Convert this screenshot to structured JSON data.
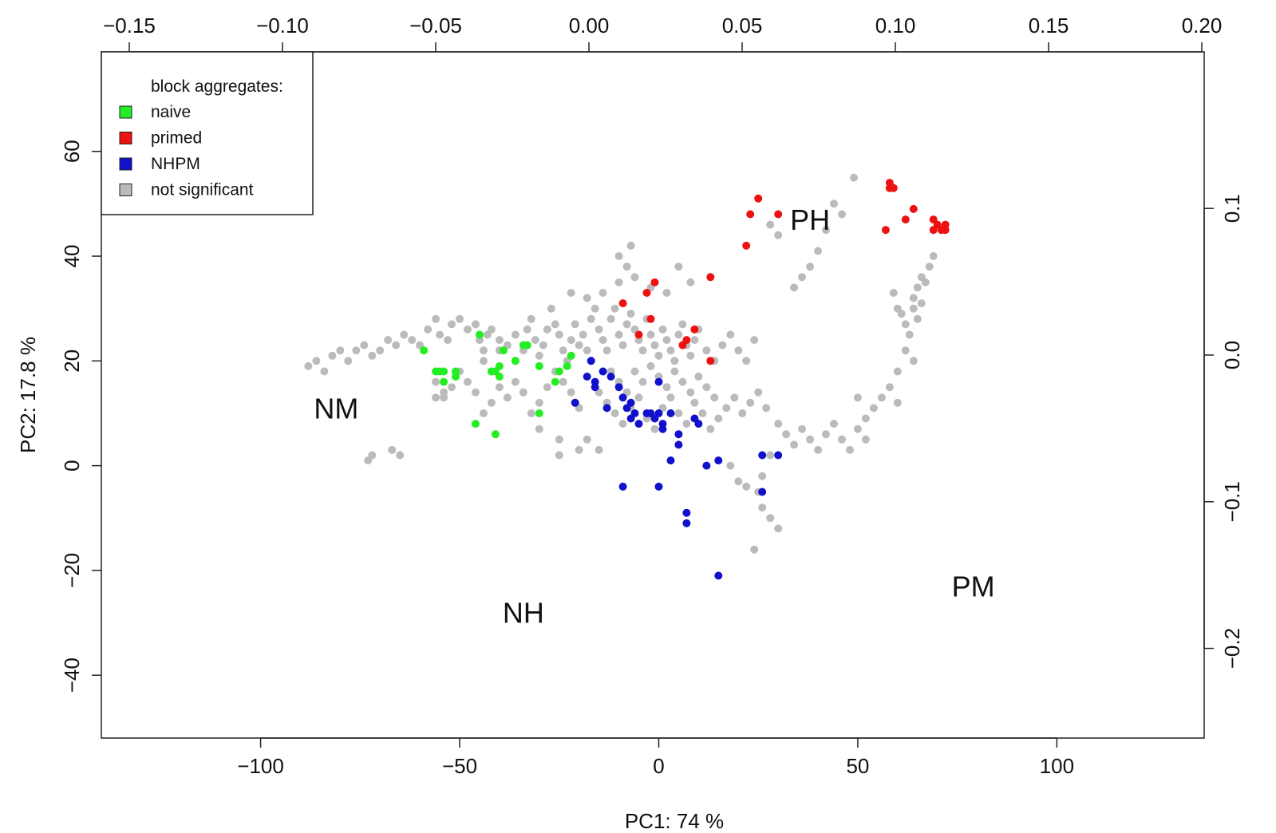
{
  "chart_data": {
    "type": "scatter",
    "title": "",
    "xlabel": "PC1: 74 %",
    "ylabel": "PC2: 17.8 %",
    "xlim": [
      -140,
      137
    ],
    "ylim": [
      -52,
      79
    ],
    "x_ticks": [
      -100,
      -50,
      0,
      50,
      100
    ],
    "y_ticks": [
      -40,
      -20,
      0,
      20,
      40,
      60
    ],
    "x_tick_labels": [
      "−100",
      "−50",
      "0",
      "50",
      "100"
    ],
    "y_tick_labels": [
      "−40",
      "−20",
      "0",
      "20",
      "40",
      "60"
    ],
    "top_axis": {
      "ticks": [
        -0.15,
        -0.1,
        -0.05,
        0.0,
        0.05,
        0.1,
        0.15,
        0.2
      ],
      "labels": [
        "−0.15",
        "−0.10",
        "−0.05",
        "0.00",
        "0.05",
        "0.10",
        "0.15",
        "0.20"
      ]
    },
    "right_axis": {
      "ticks": [
        0.1,
        0.0,
        -0.1,
        -0.2
      ],
      "labels": [
        "0.1",
        "0.0",
        "−0.1",
        "−0.2"
      ]
    },
    "legend": {
      "title": "block aggregates:",
      "placement": "top-left",
      "entries": [
        {
          "label": "naive",
          "color": "#22ee22"
        },
        {
          "label": "primed",
          "color": "#ee1111"
        },
        {
          "label": "NHPM",
          "color": "#1111cc"
        },
        {
          "label": "not significant",
          "color": "#bbbbbb"
        }
      ]
    },
    "region_labels": [
      {
        "text": "NM",
        "x": -81,
        "y": 9
      },
      {
        "text": "PH",
        "x": 38,
        "y": 45
      },
      {
        "text": "NH",
        "x": -34,
        "y": -30
      },
      {
        "text": "PM",
        "x": 79,
        "y": -25
      }
    ],
    "series": [
      {
        "color": "#bbbbbb",
        "points": [
          [
            -88,
            19
          ],
          [
            -86,
            20
          ],
          [
            -84,
            18
          ],
          [
            -82,
            21
          ],
          [
            -80,
            22
          ],
          [
            -78,
            20
          ],
          [
            -76,
            22
          ],
          [
            -74,
            23
          ],
          [
            -72,
            21
          ],
          [
            -70,
            22
          ],
          [
            -68,
            24
          ],
          [
            -66,
            23
          ],
          [
            -64,
            25
          ],
          [
            -62,
            24
          ],
          [
            -60,
            23
          ],
          [
            -58,
            26
          ],
          [
            -56,
            28
          ],
          [
            -55,
            25
          ],
          [
            -53,
            24
          ],
          [
            -52,
            27
          ],
          [
            -50,
            28
          ],
          [
            -48,
            26
          ],
          [
            -46,
            27
          ],
          [
            -45,
            24
          ],
          [
            -44,
            22
          ],
          [
            -43,
            25
          ],
          [
            -42,
            26
          ],
          [
            -40,
            24
          ],
          [
            -38,
            23
          ],
          [
            -36,
            25
          ],
          [
            -34,
            22
          ],
          [
            -33,
            26
          ],
          [
            -32,
            28
          ],
          [
            -31,
            24
          ],
          [
            -30,
            21
          ],
          [
            -29,
            23
          ],
          [
            -28,
            26
          ],
          [
            -27,
            30
          ],
          [
            -26,
            27
          ],
          [
            -25,
            25
          ],
          [
            -24,
            22
          ],
          [
            -23,
            20
          ],
          [
            -22,
            24
          ],
          [
            -21,
            27
          ],
          [
            -20,
            23
          ],
          [
            -19,
            25
          ],
          [
            -18,
            22
          ],
          [
            -17,
            28
          ],
          [
            -16,
            30
          ],
          [
            -15,
            26
          ],
          [
            -14,
            24
          ],
          [
            -13,
            22
          ],
          [
            -12,
            28
          ],
          [
            -11,
            30
          ],
          [
            -10,
            25
          ],
          [
            -9,
            23
          ],
          [
            -8,
            27
          ],
          [
            -7,
            29
          ],
          [
            -6,
            26
          ],
          [
            -5,
            24
          ],
          [
            -4,
            22
          ],
          [
            -3,
            28
          ],
          [
            -2,
            25
          ],
          [
            -1,
            23
          ],
          [
            0,
            21
          ],
          [
            1,
            26
          ],
          [
            2,
            24
          ],
          [
            3,
            22
          ],
          [
            4,
            20
          ],
          [
            5,
            25
          ],
          [
            6,
            27
          ],
          [
            7,
            23
          ],
          [
            8,
            21
          ],
          [
            9,
            24
          ],
          [
            10,
            26
          ],
          [
            12,
            22
          ],
          [
            14,
            20
          ],
          [
            16,
            23
          ],
          [
            18,
            25
          ],
          [
            20,
            22
          ],
          [
            22,
            20
          ],
          [
            24,
            24
          ],
          [
            -22,
            33
          ],
          [
            -18,
            32
          ],
          [
            -14,
            33
          ],
          [
            -10,
            35
          ],
          [
            -6,
            36
          ],
          [
            -2,
            34
          ],
          [
            2,
            33
          ],
          [
            5,
            38
          ],
          [
            8,
            35
          ],
          [
            -8,
            38
          ],
          [
            -10,
            40
          ],
          [
            -7,
            42
          ],
          [
            -12,
            18
          ],
          [
            -10,
            16
          ],
          [
            -8,
            14
          ],
          [
            -6,
            18
          ],
          [
            -4,
            16
          ],
          [
            -2,
            19
          ],
          [
            0,
            17
          ],
          [
            2,
            15
          ],
          [
            4,
            18
          ],
          [
            6,
            16
          ],
          [
            8,
            14
          ],
          [
            10,
            17
          ],
          [
            12,
            15
          ],
          [
            14,
            13
          ],
          [
            -15,
            14
          ],
          [
            -13,
            12
          ],
          [
            -11,
            10
          ],
          [
            -9,
            8
          ],
          [
            -7,
            11
          ],
          [
            -5,
            13
          ],
          [
            -3,
            9
          ],
          [
            -1,
            7
          ],
          [
            1,
            11
          ],
          [
            3,
            13
          ],
          [
            5,
            10
          ],
          [
            7,
            8
          ],
          [
            9,
            12
          ],
          [
            11,
            10
          ],
          [
            13,
            7
          ],
          [
            15,
            9
          ],
          [
            17,
            11
          ],
          [
            19,
            13
          ],
          [
            21,
            10
          ],
          [
            23,
            12
          ],
          [
            25,
            14
          ],
          [
            27,
            11
          ],
          [
            -20,
            11
          ],
          [
            -22,
            14
          ],
          [
            -24,
            16
          ],
          [
            -26,
            18
          ],
          [
            -28,
            15
          ],
          [
            -30,
            12
          ],
          [
            -32,
            10
          ],
          [
            -34,
            14
          ],
          [
            -36,
            16
          ],
          [
            -38,
            13
          ],
          [
            -40,
            15
          ],
          [
            -42,
            12
          ],
          [
            -44,
            10
          ],
          [
            -46,
            14
          ],
          [
            -48,
            16
          ],
          [
            -50,
            18
          ],
          [
            -52,
            15
          ],
          [
            -54,
            13
          ],
          [
            -56,
            16
          ],
          [
            -30,
            7
          ],
          [
            -25,
            5
          ],
          [
            -20,
            3
          ],
          [
            -18,
            5
          ],
          [
            -15,
            3
          ],
          [
            -25,
            2
          ],
          [
            -65,
            2
          ],
          [
            -67,
            3
          ],
          [
            -73,
            1
          ],
          [
            -72,
            2
          ],
          [
            -56,
            13
          ],
          [
            -54,
            14
          ],
          [
            30,
            8
          ],
          [
            32,
            6
          ],
          [
            34,
            4
          ],
          [
            36,
            7
          ],
          [
            38,
            5
          ],
          [
            40,
            3
          ],
          [
            42,
            6
          ],
          [
            44,
            8
          ],
          [
            46,
            5
          ],
          [
            48,
            3
          ],
          [
            50,
            7
          ],
          [
            52,
            5
          ],
          [
            28,
            2
          ],
          [
            26,
            -2
          ],
          [
            25,
            -5
          ],
          [
            26,
            -8
          ],
          [
            28,
            -10
          ],
          [
            30,
            -12
          ],
          [
            20,
            -3
          ],
          [
            18,
            0
          ],
          [
            24,
            -16
          ],
          [
            22,
            -4
          ],
          [
            49,
            55
          ],
          [
            46,
            48
          ],
          [
            44,
            50
          ],
          [
            42,
            45
          ],
          [
            40,
            41
          ],
          [
            38,
            38
          ],
          [
            36,
            36
          ],
          [
            34,
            34
          ],
          [
            28,
            46
          ],
          [
            30,
            44
          ],
          [
            60,
            18
          ],
          [
            62,
            22
          ],
          [
            64,
            20
          ],
          [
            58,
            15
          ],
          [
            56,
            13
          ],
          [
            54,
            11
          ],
          [
            52,
            9
          ],
          [
            50,
            13
          ],
          [
            64,
            32
          ],
          [
            65,
            34
          ],
          [
            66,
            36
          ],
          [
            67,
            35
          ],
          [
            68,
            38
          ],
          [
            69,
            40
          ],
          [
            65,
            28
          ],
          [
            64,
            30
          ],
          [
            63,
            25
          ],
          [
            62,
            27
          ],
          [
            60,
            30
          ],
          [
            59,
            33
          ],
          [
            61,
            29
          ],
          [
            66,
            31
          ],
          [
            60,
            12
          ],
          [
            -40,
            22
          ],
          [
            -36,
            20
          ],
          [
            -44,
            20
          ]
        ]
      },
      {
        "name": "naive",
        "color": "#22ee22",
        "points": [
          [
            -59,
            22
          ],
          [
            -56,
            18
          ],
          [
            -55,
            18
          ],
          [
            -54,
            18
          ],
          [
            -54,
            16
          ],
          [
            -51,
            18
          ],
          [
            -51,
            17
          ],
          [
            -45,
            25
          ],
          [
            -42,
            18
          ],
          [
            -40,
            19
          ],
          [
            -41,
            18
          ],
          [
            -40,
            17
          ],
          [
            -39,
            22
          ],
          [
            -36,
            20
          ],
          [
            -34,
            23
          ],
          [
            -33,
            23
          ],
          [
            -30,
            19
          ],
          [
            -26,
            16
          ],
          [
            -25,
            18
          ],
          [
            -23,
            19
          ],
          [
            -22,
            21
          ],
          [
            -46,
            8
          ],
          [
            -41,
            6
          ],
          [
            -30,
            10
          ]
        ]
      },
      {
        "name": "primed",
        "color": "#ee1111",
        "points": [
          [
            25,
            51
          ],
          [
            23,
            48
          ],
          [
            30,
            48
          ],
          [
            22,
            42
          ],
          [
            58,
            53
          ],
          [
            58,
            54
          ],
          [
            59,
            53
          ],
          [
            64,
            49
          ],
          [
            62,
            47
          ],
          [
            69,
            47
          ],
          [
            70,
            46
          ],
          [
            69,
            45
          ],
          [
            71,
            45
          ],
          [
            72,
            45
          ],
          [
            72,
            46
          ],
          [
            57,
            45
          ],
          [
            -9,
            31
          ],
          [
            -3,
            33
          ],
          [
            -1,
            35
          ],
          [
            -2,
            28
          ],
          [
            -5,
            25
          ],
          [
            6,
            23
          ],
          [
            7,
            24
          ],
          [
            9,
            26
          ],
          [
            13,
            36
          ],
          [
            13,
            20
          ]
        ]
      },
      {
        "name": "NHPM",
        "color": "#1111cc",
        "points": [
          [
            -17,
            20
          ],
          [
            -14,
            18
          ],
          [
            -12,
            17
          ],
          [
            -18,
            17
          ],
          [
            -16,
            16
          ],
          [
            -16,
            15
          ],
          [
            -10,
            15
          ],
          [
            -9,
            13
          ],
          [
            -7,
            12
          ],
          [
            -21,
            12
          ],
          [
            -13,
            11
          ],
          [
            -8,
            11
          ],
          [
            -6,
            10
          ],
          [
            -7,
            9
          ],
          [
            -5,
            8
          ],
          [
            -3,
            10
          ],
          [
            -2,
            10
          ],
          [
            -1,
            9
          ],
          [
            0,
            10
          ],
          [
            1,
            8
          ],
          [
            1,
            7
          ],
          [
            3,
            10
          ],
          [
            5,
            6
          ],
          [
            5,
            4
          ],
          [
            9,
            9
          ],
          [
            10,
            8
          ],
          [
            0,
            16
          ],
          [
            3,
            1
          ],
          [
            12,
            0
          ],
          [
            15,
            1
          ],
          [
            26,
            2
          ],
          [
            30,
            2
          ],
          [
            -9,
            -4
          ],
          [
            0,
            -4
          ],
          [
            7,
            -9
          ],
          [
            7,
            -11
          ],
          [
            26,
            -5
          ],
          [
            15,
            -21
          ]
        ]
      }
    ]
  }
}
